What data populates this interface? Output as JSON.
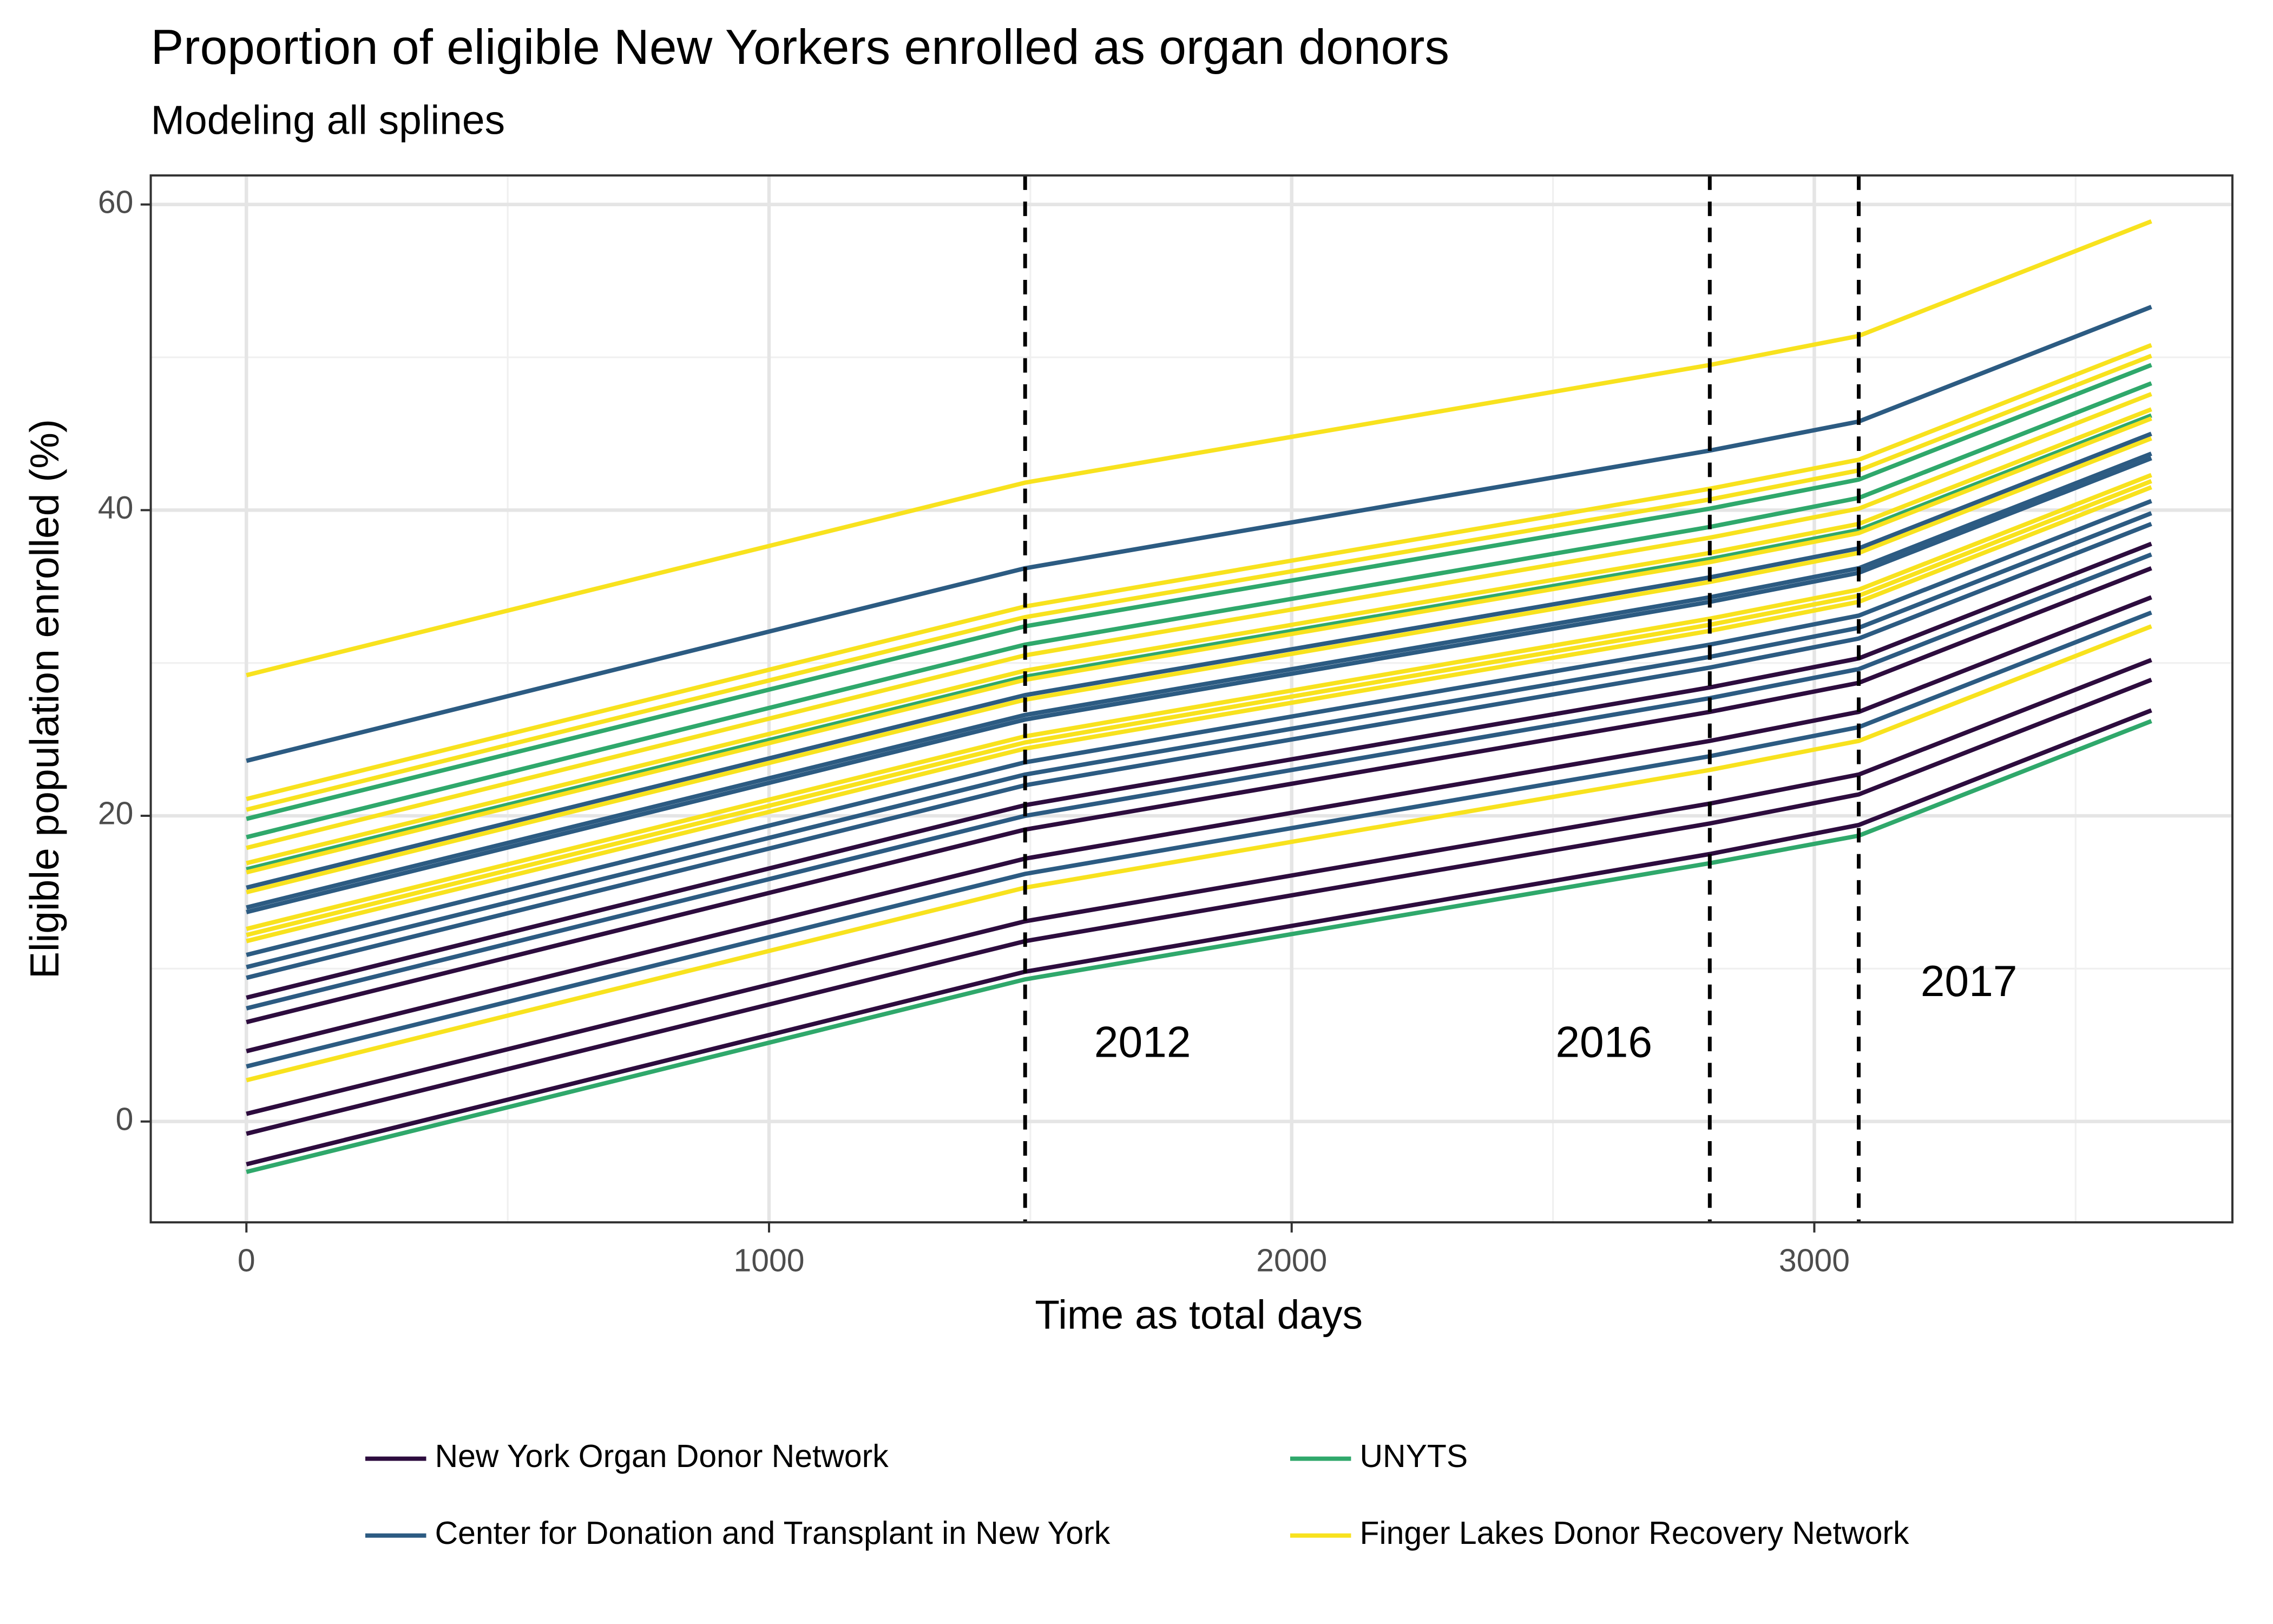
{
  "chart_data": {
    "type": "line",
    "title": "Proportion of eligible New Yorkers enrolled as organ donors",
    "subtitle": "Modeling all splines",
    "x_label": "Time as total days",
    "y_label": "Eligible population enrolled (%)",
    "x": [
      0,
      1490,
      2800,
      3085,
      3645
    ],
    "xlim": [
      -183,
      3800
    ],
    "ylim": [
      -6.6,
      61.9
    ],
    "xticks": [
      0,
      1000,
      2000,
      3000
    ],
    "yticks": [
      0,
      20,
      40,
      60
    ],
    "grid": true,
    "legend_position": "bottom",
    "annotations": [
      {
        "x": 1490,
        "label": "2012"
      },
      {
        "x": 2800,
        "label": "2016"
      },
      {
        "x": 3085,
        "label": "2017"
      }
    ],
    "series": [
      {
        "name": "New York Organ Donor Network",
        "color": "#2d0c3e",
        "lines": [
          [
            8.1,
            20.7,
            28.4,
            30.3,
            37.8
          ],
          [
            6.5,
            19.1,
            26.8,
            28.7,
            36.2
          ],
          [
            4.6,
            17.2,
            24.9,
            26.8,
            34.3
          ],
          [
            0.5,
            13.1,
            20.8,
            22.7,
            30.2
          ],
          [
            -0.8,
            11.8,
            19.5,
            21.4,
            28.9
          ],
          [
            -2.8,
            9.8,
            17.5,
            19.4,
            26.9
          ]
        ]
      },
      {
        "name": "Center for Donation and Transplant in New York",
        "color": "#2c5b82",
        "lines": [
          [
            23.6,
            36.2,
            43.9,
            45.8,
            53.3
          ],
          [
            15.3,
            27.9,
            35.6,
            37.5,
            45.0
          ],
          [
            14.0,
            26.6,
            34.3,
            36.2,
            43.7
          ],
          [
            13.7,
            26.3,
            34.0,
            35.9,
            43.4
          ],
          [
            10.9,
            23.5,
            31.2,
            33.1,
            40.6
          ],
          [
            10.1,
            22.7,
            30.4,
            32.3,
            39.8
          ],
          [
            9.4,
            22.0,
            29.7,
            31.6,
            39.1
          ],
          [
            7.4,
            20.0,
            27.7,
            29.6,
            37.1
          ],
          [
            3.6,
            16.2,
            23.9,
            25.8,
            33.3
          ]
        ]
      },
      {
        "name": "UNYTS",
        "color": "#2fa86b",
        "lines": [
          [
            19.8,
            32.4,
            40.1,
            42.0,
            49.5
          ],
          [
            18.6,
            31.2,
            38.9,
            40.8,
            48.3
          ],
          [
            16.5,
            29.1,
            36.8,
            38.7,
            46.2
          ],
          [
            -3.3,
            9.3,
            16.9,
            18.7,
            26.2
          ]
        ]
      },
      {
        "name": "Finger Lakes Donor Recovery Network",
        "color": "#f8e21e",
        "lines": [
          [
            29.2,
            41.8,
            49.5,
            51.4,
            58.9
          ],
          [
            21.1,
            33.7,
            41.4,
            43.3,
            50.8
          ],
          [
            20.4,
            33.0,
            40.7,
            42.6,
            50.1
          ],
          [
            17.9,
            30.5,
            38.2,
            40.1,
            47.6
          ],
          [
            16.9,
            29.5,
            37.2,
            39.1,
            46.6
          ],
          [
            16.3,
            28.9,
            36.6,
            38.5,
            46.0
          ],
          [
            15.0,
            27.6,
            35.3,
            37.2,
            44.7
          ],
          [
            12.6,
            25.2,
            32.9,
            34.8,
            42.3
          ],
          [
            12.2,
            24.8,
            32.5,
            34.4,
            41.9
          ],
          [
            11.8,
            24.4,
            32.1,
            34.0,
            41.5
          ],
          [
            2.7,
            15.3,
            23.0,
            24.9,
            32.4
          ]
        ]
      }
    ]
  }
}
